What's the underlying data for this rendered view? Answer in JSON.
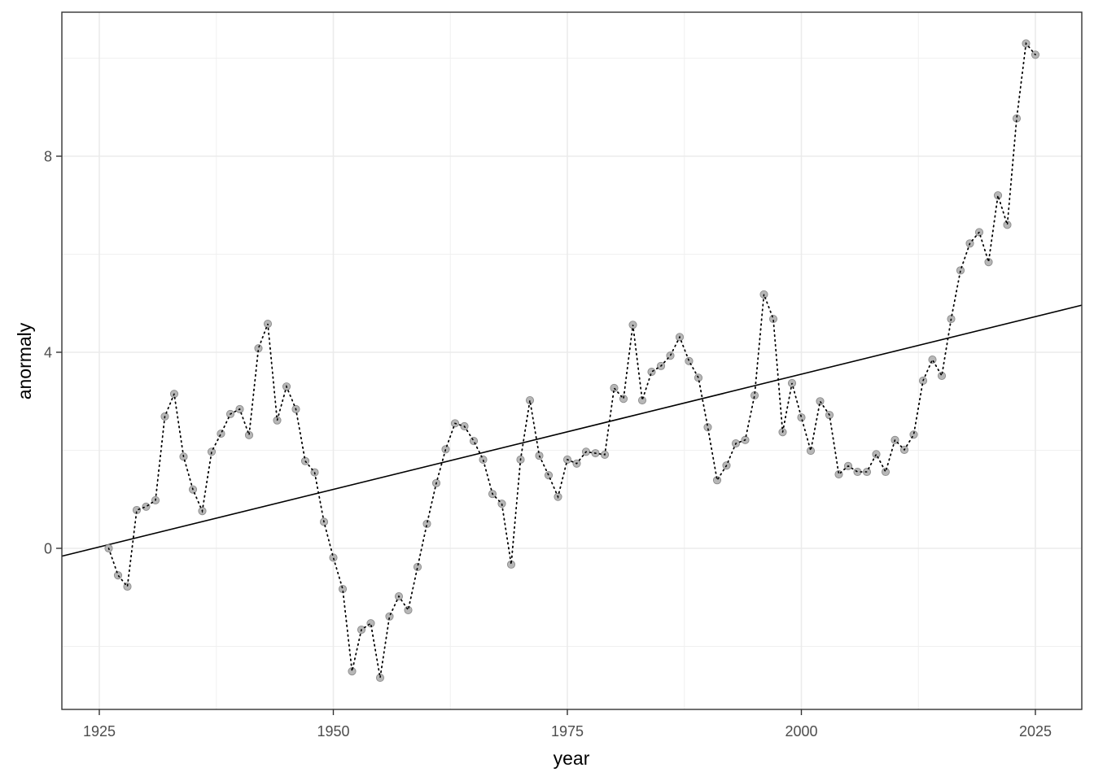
{
  "chart_data": {
    "type": "scatter",
    "title": "",
    "xlabel": "year",
    "ylabel": "anormaly",
    "xlim": [
      1921,
      2030
    ],
    "ylim": [
      -3.3,
      10.95
    ],
    "x_ticks": [
      1925,
      1950,
      1975,
      2000,
      2025
    ],
    "y_ticks": [
      0,
      4,
      8
    ],
    "x_minor": [
      1937.5,
      1962.5,
      1987.5,
      2012.5
    ],
    "y_minor": [
      -2,
      2,
      6,
      10
    ],
    "grid": true,
    "legend": null,
    "series": [
      {
        "name": "anomaly",
        "style": "points + dotted line",
        "point_color": "#b3b3b3",
        "x": [
          1926,
          1927,
          1928,
          1929,
          1930,
          1931,
          1932,
          1933,
          1934,
          1935,
          1936,
          1937,
          1938,
          1939,
          1940,
          1941,
          1942,
          1943,
          1944,
          1945,
          1946,
          1947,
          1948,
          1949,
          1950,
          1951,
          1952,
          1953,
          1954,
          1955,
          1956,
          1957,
          1958,
          1959,
          1960,
          1961,
          1962,
          1963,
          1964,
          1965,
          1966,
          1967,
          1968,
          1969,
          1970,
          1971,
          1972,
          1973,
          1974,
          1975,
          1976,
          1977,
          1978,
          1979,
          1980,
          1981,
          1982,
          1983,
          1984,
          1985,
          1986,
          1987,
          1988,
          1989,
          1990,
          1991,
          1992,
          1993,
          1994,
          1995,
          1996,
          1997,
          1998,
          1999,
          2000,
          2001,
          2002,
          2003,
          2004,
          2005,
          2006,
          2007,
          2008,
          2009,
          2010,
          2011,
          2012,
          2013,
          2014,
          2015,
          2016,
          2017,
          2018,
          2019,
          2020,
          2021,
          2022,
          2023,
          2024,
          2025
        ],
        "values": [
          0.0,
          -0.55,
          -0.78,
          0.78,
          0.85,
          0.98,
          2.69,
          3.15,
          1.87,
          1.2,
          0.76,
          1.97,
          2.34,
          2.74,
          2.84,
          2.31,
          4.08,
          4.58,
          2.61,
          3.3,
          2.84,
          1.78,
          1.55,
          0.54,
          -0.19,
          -0.83,
          -2.51,
          -1.66,
          -1.53,
          -2.64,
          -1.39,
          -0.98,
          -1.26,
          -0.38,
          0.5,
          1.33,
          2.02,
          2.55,
          2.49,
          2.19,
          1.81,
          1.11,
          0.91,
          -0.33,
          1.81,
          3.02,
          1.89,
          1.49,
          1.05,
          1.81,
          1.73,
          1.97,
          1.94,
          1.91,
          3.27,
          3.05,
          4.56,
          3.02,
          3.6,
          3.72,
          3.93,
          4.31,
          3.82,
          3.48,
          2.47,
          1.39,
          1.69,
          2.14,
          2.21,
          3.12,
          5.18,
          4.68,
          2.37,
          3.37,
          2.67,
          1.99,
          3.0,
          2.72,
          1.51,
          1.68,
          1.56,
          1.56,
          1.92,
          1.56,
          2.21,
          2.01,
          2.32,
          3.42,
          3.85,
          3.52,
          4.68,
          5.67,
          6.22,
          6.45,
          5.84,
          7.2,
          6.6,
          8.77,
          10.3,
          10.07
        ]
      },
      {
        "name": "trend",
        "style": "solid line",
        "x": [
          1921,
          2030
        ],
        "values": [
          -0.16,
          4.96
        ]
      }
    ]
  },
  "axes": {
    "x_title": "year",
    "y_title": "anormaly",
    "x_tick_labels": [
      "1925",
      "1950",
      "1975",
      "2000",
      "2025"
    ],
    "y_tick_labels": [
      "0",
      "4",
      "8"
    ]
  }
}
